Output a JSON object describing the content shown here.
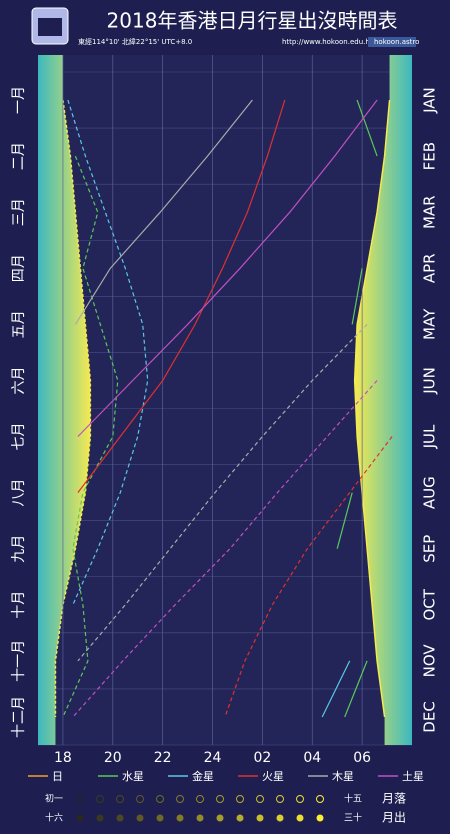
{
  "chart_data": {
    "type": "line",
    "title": "2018年香港日月行星出沒時間表",
    "coordinates": "東經114°10'  北緯22°15'  UTC+8.0",
    "url": "http://www.hokoon.edu.hk/",
    "social": "hokoon.astro",
    "categories": [
      "一月",
      "二月",
      "三月",
      "四月",
      "五月",
      "六月",
      "七月",
      "八月",
      "九月",
      "十月",
      "十一月",
      "十二月"
    ],
    "categories_en": [
      "JAN",
      "FEB",
      "MAR",
      "APR",
      "MAY",
      "JUN",
      "JUL",
      "AUG",
      "SEP",
      "OCT",
      "NOV",
      "DEC"
    ],
    "xlim": [
      17,
      32
    ],
    "xticks": [
      18,
      20,
      22,
      24,
      {
        "value": 26,
        "label": "02"
      },
      {
        "value": 28,
        "label": "04"
      },
      {
        "value": 30,
        "label": "06"
      }
    ],
    "grid": true,
    "series": [
      {
        "name": "日",
        "color": "#f0a030",
        "rise": [
          31.1,
          30.9,
          30.6,
          30.2,
          29.8,
          29.7,
          29.8,
          30.0,
          30.2,
          30.4,
          30.6,
          30.9
        ],
        "set": [
          18.0,
          18.3,
          18.5,
          18.7,
          18.9,
          19.1,
          19.1,
          18.9,
          18.5,
          18.0,
          17.7,
          17.7
        ]
      },
      {
        "name": "水星",
        "color": "#5ac85a",
        "rise": [
          29.8,
          30.6,
          null,
          30.0,
          29.6,
          null,
          null,
          29.6,
          29.0,
          null,
          30.2,
          29.3
        ],
        "set": [
          null,
          18.5,
          19.4,
          18.8,
          19.5,
          20.2,
          20.0,
          18.8,
          18.4,
          18.8,
          19.0,
          18.0
        ]
      },
      {
        "name": "金星",
        "color": "#5ac8e6",
        "rise": [
          null,
          null,
          null,
          null,
          null,
          null,
          null,
          null,
          null,
          null,
          29.5,
          28.4
        ],
        "set": [
          18.2,
          18.9,
          19.7,
          20.5,
          21.2,
          21.4,
          21.0,
          20.3,
          19.4,
          18.4,
          null,
          null
        ]
      },
      {
        "name": "火星",
        "color": "#e03030",
        "rise": [
          26.9,
          26.2,
          25.4,
          24.4,
          23.3,
          22.0,
          20.3,
          18.6,
          null,
          null,
          null,
          null
        ],
        "set": [
          null,
          null,
          null,
          null,
          null,
          null,
          31.2,
          29.5,
          27.8,
          26.4,
          25.3,
          24.5
        ]
      },
      {
        "name": "木星",
        "color": "#aaaaaa",
        "rise": [
          25.6,
          23.8,
          21.9,
          19.9,
          18.5,
          null,
          null,
          null,
          null,
          null,
          null,
          null
        ],
        "set": [
          null,
          null,
          null,
          null,
          30.2,
          28.0,
          26.0,
          24.1,
          22.3,
          20.5,
          18.6,
          null
        ]
      },
      {
        "name": "土星",
        "color": "#c050c0",
        "rise": [
          30.6,
          28.9,
          27.1,
          25.1,
          23.0,
          20.8,
          18.6,
          null,
          null,
          null,
          null,
          null
        ],
        "set": [
          null,
          null,
          null,
          null,
          null,
          30.6,
          28.6,
          26.6,
          24.7,
          22.5,
          20.4,
          18.4
        ]
      }
    ],
    "moon_legend": {
      "new": "初一",
      "full": "十五",
      "moonset": "月落",
      "after_full": "十六",
      "end": "三十",
      "moonrise": "月出"
    }
  }
}
